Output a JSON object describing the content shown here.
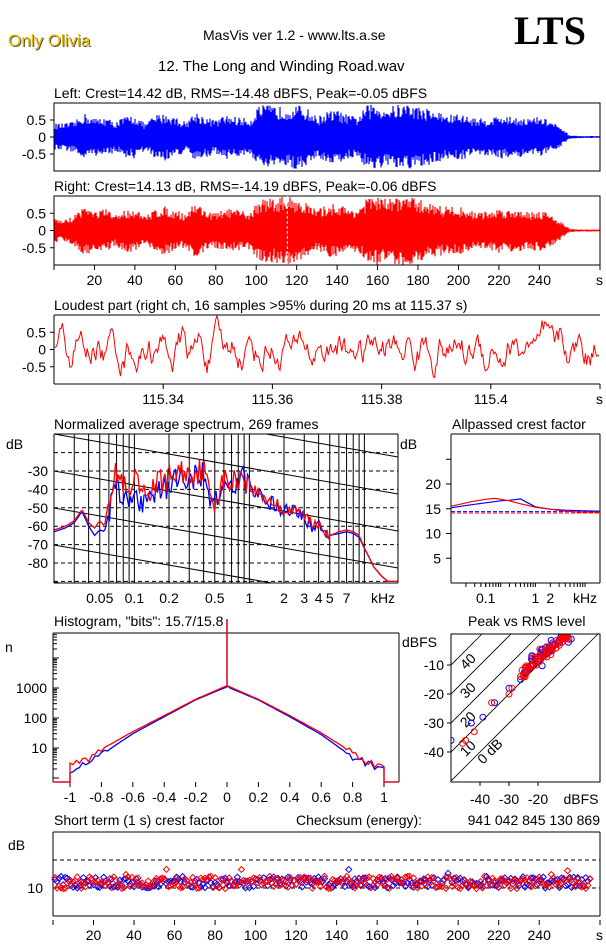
{
  "header": {
    "brand": "Only Olivia",
    "app_title": "MasVis ver 1.2 - www.lts.a.se",
    "logo": "LTS",
    "file_title": "12. The Long and Winding Road.wav"
  },
  "colors": {
    "left": "#0000ff",
    "right": "#ff0000",
    "axis": "#000000",
    "brand": "#e6c000"
  },
  "chart_data": [
    {
      "id": "left-waveform",
      "type": "area",
      "title": "Left: Crest=14.42 dB, RMS=-14.48 dBFS, Peak=-0.05 dBFS",
      "ylim": [
        -1,
        1
      ],
      "yticks": [
        "0.5",
        "0",
        "-0.5"
      ],
      "ytick_values": [
        0.5,
        0,
        -0.5
      ],
      "xlim": [
        0,
        270
      ],
      "series_color": "#0000ff",
      "envelope_x": [
        0,
        5,
        10,
        15,
        20,
        25,
        30,
        35,
        40,
        45,
        50,
        55,
        60,
        65,
        70,
        75,
        80,
        85,
        90,
        95,
        98,
        100,
        105,
        110,
        115,
        120,
        125,
        130,
        135,
        140,
        145,
        150,
        155,
        160,
        165,
        170,
        175,
        180,
        185,
        190,
        195,
        200,
        205,
        210,
        215,
        220,
        225,
        230,
        235,
        240,
        245,
        250,
        255,
        260,
        265,
        270
      ],
      "envelope_amp": [
        0.4,
        0.4,
        0.45,
        0.7,
        0.55,
        0.6,
        0.45,
        0.6,
        0.65,
        0.4,
        0.65,
        0.7,
        0.6,
        0.45,
        0.75,
        0.6,
        0.5,
        0.65,
        0.6,
        0.55,
        0.55,
        0.9,
        0.95,
        0.9,
        0.9,
        0.95,
        0.85,
        0.6,
        0.75,
        0.8,
        0.65,
        0.6,
        0.95,
        0.95,
        0.9,
        0.95,
        1.0,
        0.9,
        0.85,
        0.75,
        0.65,
        0.7,
        0.6,
        0.55,
        0.55,
        0.65,
        0.6,
        0.6,
        0.55,
        0.6,
        0.5,
        0.3,
        0.05,
        0.03,
        0.03,
        0.03
      ]
    },
    {
      "id": "right-waveform",
      "type": "area",
      "title": "Right: Crest=14.13 dB, RMS=-14.19 dBFS, Peak=-0.06 dBFS",
      "ylim": [
        -1,
        1
      ],
      "yticks": [
        "0.5",
        "0",
        "-0.5"
      ],
      "ytick_values": [
        0.5,
        0,
        -0.5
      ],
      "xlim": [
        0,
        270
      ],
      "xticks": [
        "20",
        "40",
        "60",
        "80",
        "100",
        "120",
        "140",
        "160",
        "180",
        "200",
        "220",
        "240",
        "s"
      ],
      "xtick_values": [
        20,
        40,
        60,
        80,
        100,
        120,
        140,
        160,
        180,
        200,
        220,
        240,
        270
      ],
      "marker_time": 115.37,
      "series_color": "#ff0000",
      "envelope_x": [
        0,
        5,
        10,
        15,
        20,
        25,
        30,
        35,
        40,
        45,
        50,
        55,
        60,
        65,
        70,
        75,
        80,
        85,
        90,
        95,
        98,
        100,
        105,
        110,
        115,
        120,
        125,
        130,
        135,
        140,
        145,
        150,
        155,
        160,
        165,
        170,
        175,
        180,
        185,
        190,
        195,
        200,
        205,
        210,
        215,
        220,
        225,
        230,
        235,
        240,
        245,
        250,
        255,
        260,
        265,
        270
      ],
      "envelope_amp": [
        0.35,
        0.3,
        0.45,
        0.75,
        0.55,
        0.65,
        0.45,
        0.6,
        0.65,
        0.4,
        0.65,
        0.7,
        0.6,
        0.5,
        0.85,
        0.6,
        0.5,
        0.65,
        0.6,
        0.55,
        0.55,
        0.85,
        0.95,
        0.95,
        1.0,
        0.95,
        0.8,
        0.6,
        0.75,
        0.8,
        0.65,
        0.65,
        0.95,
        1.0,
        0.9,
        1.0,
        1.0,
        0.9,
        0.85,
        0.75,
        0.7,
        0.7,
        0.6,
        0.55,
        0.55,
        0.65,
        0.6,
        0.65,
        0.55,
        0.6,
        0.5,
        0.3,
        0.05,
        0.03,
        0.03,
        0.03
      ]
    },
    {
      "id": "loudest-part",
      "type": "line",
      "title": "Loudest part (right ch, 16 samples >95% during 20 ms at 115.37 s)",
      "ylim": [
        -1,
        1
      ],
      "yticks": [
        "0.5",
        "0",
        "-0.5"
      ],
      "ytick_values": [
        0.5,
        0,
        -0.5
      ],
      "xlim": [
        115.32,
        115.42
      ],
      "xticks": [
        "115.34",
        "115.36",
        "115.38",
        "115.4",
        "s"
      ],
      "xtick_values": [
        115.34,
        115.36,
        115.38,
        115.4,
        115.42
      ],
      "series_color": "#ff0000",
      "samples_count": 441
    },
    {
      "id": "spectrum",
      "type": "line",
      "title": "Normalized average spectrum, 269 frames",
      "ylabel": "dB",
      "xlabel": "kHz",
      "xscale": "log",
      "xlim": [
        0.02,
        19.7
      ],
      "ylim": [
        -90,
        -20
      ],
      "yticks": [
        "-30",
        "-40",
        "-50",
        "-60",
        "-70",
        "-80"
      ],
      "ytick_values": [
        -30,
        -40,
        -50,
        -60,
        -70,
        -80
      ],
      "xticks": [
        "0.05",
        "0.1",
        "0.2",
        "0.5",
        "1",
        "2",
        "3",
        "4",
        "5",
        "7",
        "kHz"
      ],
      "xtick_values": [
        0.05,
        0.1,
        0.2,
        0.5,
        1,
        2,
        3,
        4,
        5,
        7,
        19.7
      ],
      "series": [
        {
          "name": "left",
          "color": "#0000ff",
          "x": [
            0.02,
            0.025,
            0.03,
            0.035,
            0.04,
            0.045,
            0.05,
            0.055,
            0.06,
            0.065,
            0.07,
            0.08,
            0.09,
            0.1,
            0.12,
            0.14,
            0.16,
            0.2,
            0.25,
            0.3,
            0.35,
            0.4,
            0.45,
            0.5,
            0.6,
            0.7,
            0.8,
            0.9,
            1.0,
            1.2,
            1.5,
            2.0,
            2.5,
            3.0,
            3.5,
            4.0,
            5.0,
            6.0,
            7.0,
            8.0,
            9.0,
            10.0,
            12.0,
            14.0,
            16.0,
            19.7
          ],
          "y": [
            -63,
            -61,
            -58,
            -52,
            -60,
            -65,
            -62,
            -63,
            -52,
            -42,
            -37,
            -45,
            -50,
            -42,
            -48,
            -44,
            -40,
            -38,
            -33,
            -34,
            -32,
            -31,
            -45,
            -48,
            -38,
            -39,
            -35,
            -33,
            -40,
            -43,
            -47,
            -52,
            -53,
            -55,
            -60,
            -58,
            -65,
            -64,
            -63,
            -64,
            -66,
            -72,
            -82,
            -87,
            -90,
            -90
          ]
        },
        {
          "name": "right",
          "color": "#ff0000",
          "x": [
            0.02,
            0.025,
            0.03,
            0.035,
            0.04,
            0.045,
            0.05,
            0.055,
            0.06,
            0.065,
            0.07,
            0.08,
            0.09,
            0.1,
            0.12,
            0.14,
            0.16,
            0.2,
            0.25,
            0.3,
            0.35,
            0.4,
            0.45,
            0.5,
            0.6,
            0.7,
            0.8,
            0.9,
            1.0,
            1.2,
            1.5,
            2.0,
            2.5,
            3.0,
            3.5,
            4.0,
            5.0,
            6.0,
            7.0,
            8.0,
            9.0,
            10.0,
            12.0,
            14.0,
            16.0,
            19.7
          ],
          "y": [
            -62,
            -60,
            -57,
            -51,
            -58,
            -61,
            -57,
            -60,
            -45,
            -35,
            -31,
            -38,
            -46,
            -35,
            -44,
            -40,
            -36,
            -34,
            -30,
            -32,
            -30,
            -29,
            -42,
            -46,
            -35,
            -37,
            -33,
            -32,
            -39,
            -42,
            -46,
            -51,
            -52,
            -54,
            -59,
            -57,
            -65,
            -63,
            -62,
            -63,
            -65,
            -72,
            -82,
            -87,
            -90,
            -90
          ]
        }
      ]
    },
    {
      "id": "allpassed-crest",
      "type": "line",
      "title": "Allpassed crest factor",
      "ylabel": "dB",
      "xlabel": "kHz",
      "xscale": "log",
      "xlim": [
        0.02,
        20
      ],
      "ylim": [
        0,
        27
      ],
      "yticks": [
        "20",
        "15",
        "10",
        "5"
      ],
      "ytick_values": [
        20,
        15,
        10,
        5
      ],
      "xticks": [
        "0.1",
        "1",
        "2",
        "kHz"
      ],
      "xtick_values": [
        0.1,
        1,
        2,
        20
      ],
      "series": [
        {
          "name": "left",
          "color": "#0000ff",
          "x": [
            0.02,
            0.05,
            0.1,
            0.2,
            0.3,
            0.5,
            0.7,
            1.0,
            2.0,
            4.0,
            8.0,
            20.0
          ],
          "y": [
            15.2,
            15.8,
            16.2,
            16.6,
            16.7,
            17.0,
            16.2,
            15.4,
            14.9,
            14.7,
            14.6,
            14.5
          ],
          "reference": 14.42
        },
        {
          "name": "right",
          "color": "#ff0000",
          "x": [
            0.02,
            0.05,
            0.1,
            0.15,
            0.2,
            0.3,
            0.5,
            0.7,
            1.0,
            2.0,
            4.0,
            8.0,
            20.0
          ],
          "y": [
            15.5,
            16.4,
            16.9,
            17.1,
            16.9,
            16.6,
            16.0,
            15.7,
            15.3,
            14.9,
            14.5,
            14.3,
            14.3
          ],
          "reference": 14.13
        }
      ]
    },
    {
      "id": "histogram",
      "type": "line",
      "title": "Histogram, \"bits\": 15.7/15.8",
      "ylabel": "n",
      "yscale": "log",
      "ylim": [
        1,
        200000
      ],
      "xlim": [
        -1.1,
        1.1
      ],
      "yticks": [
        "1000",
        "100",
        "10"
      ],
      "ytick_values": [
        1000,
        100,
        10
      ],
      "xticks": [
        "-1",
        "-0.8",
        "-0.6",
        "-0.4",
        "-0.2",
        "0",
        "0.2",
        "0.4",
        "0.6",
        "0.8",
        "1"
      ],
      "xtick_values": [
        -1,
        -0.8,
        -0.6,
        -0.4,
        -0.2,
        0,
        0.2,
        0.4,
        0.6,
        0.8,
        1
      ],
      "series": [
        {
          "name": "left",
          "color": "#0000ff",
          "x": [
            -1,
            -0.9,
            -0.8,
            -0.6,
            -0.4,
            -0.2,
            0,
            0.2,
            0.4,
            0.6,
            0.8,
            0.9,
            1
          ],
          "y": [
            2,
            3,
            6,
            30,
            110,
            400,
            1100,
            400,
            110,
            28,
            5,
            3,
            2
          ]
        },
        {
          "name": "right",
          "color": "#ff0000",
          "x": [
            -1,
            -0.9,
            -0.8,
            -0.6,
            -0.4,
            -0.2,
            0,
            0.2,
            0.4,
            0.6,
            0.8,
            0.9,
            1
          ],
          "y": [
            3,
            4,
            9,
            35,
            120,
            420,
            1200,
            420,
            120,
            32,
            7,
            4,
            2
          ]
        }
      ],
      "center_spike": 200000
    },
    {
      "id": "peak-vs-rms",
      "type": "scatter",
      "title": "Peak vs RMS level",
      "ylabel": "dBFS",
      "xlabel": "dBFS",
      "xlim": [
        -50,
        0
      ],
      "ylim": [
        -50,
        0
      ],
      "yticks": [
        "-10",
        "-20",
        "-30",
        "-40"
      ],
      "ytick_values": [
        -10,
        -20,
        -30,
        -40
      ],
      "xticks": [
        "-40",
        "-30",
        "-20",
        "dBFS"
      ],
      "xtick_values": [
        -40,
        -30,
        -20,
        0
      ],
      "crest_lines": [
        "0 dB",
        "10",
        "20",
        "30",
        "40"
      ],
      "crest_line_values": [
        0,
        10,
        20,
        30,
        40
      ],
      "series": [
        {
          "name": "left",
          "color": "#0000ff",
          "x": [
            -50,
            -43,
            -39,
            -35,
            -30,
            -26,
            -24,
            -22,
            -21,
            -20,
            -19,
            -18,
            -17,
            -16,
            -15,
            -14,
            -13,
            -12,
            -11,
            -10
          ],
          "y": [
            -36,
            -30,
            -28,
            -23,
            -18,
            -15,
            -12,
            -10,
            -8,
            -9,
            -7,
            -6,
            -5,
            -5,
            -4,
            -3,
            -2,
            -1,
            -1,
            0
          ]
        },
        {
          "name": "right",
          "color": "#ff0000",
          "x": [
            -46,
            -45,
            -42,
            -36,
            -30,
            -29,
            -26,
            -25,
            -24,
            -23,
            -22,
            -21,
            -20,
            -19,
            -18,
            -17,
            -16,
            -15,
            -14,
            -13,
            -12,
            -11,
            -10
          ],
          "y": [
            -37,
            -36,
            -33,
            -23,
            -20,
            -18,
            -14,
            -14,
            -12,
            -11,
            -10,
            -9,
            -8,
            -8,
            -6,
            -5,
            -4,
            -4,
            -3,
            -2,
            -1,
            -1,
            0
          ]
        }
      ]
    },
    {
      "id": "short-term-crest",
      "type": "scatter",
      "title": "Short term (1 s) crest factor",
      "checksum_label": "Checksum (energy):",
      "checksum_value": "941 042 845 130 869",
      "ylabel": "dB",
      "ylim": [
        5,
        20
      ],
      "yticks": [
        "10"
      ],
      "ytick_values": [
        10
      ],
      "dashed_levels": [
        10,
        15
      ],
      "xlim": [
        0,
        270
      ],
      "xticks": [
        "20",
        "40",
        "60",
        "80",
        "100",
        "120",
        "140",
        "160",
        "180",
        "200",
        "220",
        "240",
        "s"
      ],
      "xtick_values": [
        20,
        40,
        60,
        80,
        100,
        120,
        140,
        160,
        180,
        200,
        220,
        240,
        270
      ],
      "series": [
        {
          "name": "left",
          "color": "#0000ff",
          "mean": 11.0,
          "spread": 1.0,
          "count": 265
        },
        {
          "name": "right",
          "color": "#ff0000",
          "mean": 11.0,
          "spread": 1.1,
          "count": 265
        }
      ]
    }
  ]
}
